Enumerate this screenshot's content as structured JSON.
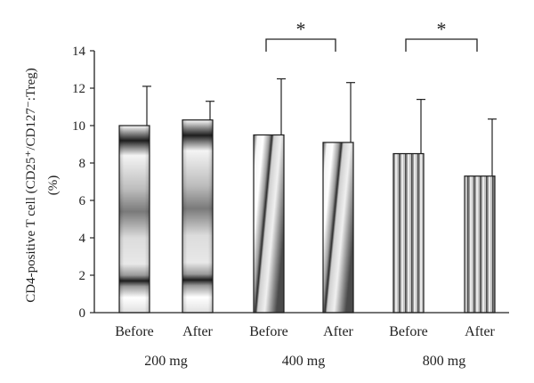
{
  "chart_data": {
    "type": "bar",
    "ylabel_line1": "CD4-positive T cell (CD25⁺/CD127⁻:Treg)",
    "ylabel_line2": "(%)",
    "ylim": [
      0,
      14
    ],
    "yticks": [
      "0",
      "2",
      "4",
      "6",
      "8",
      "10",
      "12",
      "14"
    ],
    "grid": false,
    "groups": [
      {
        "name": "200 mg",
        "pattern": "horizontal-gradient"
      },
      {
        "name": "400 mg",
        "pattern": "diagonal-gradient"
      },
      {
        "name": "800 mg",
        "pattern": "vertical-stripes"
      }
    ],
    "bars": [
      {
        "category": "Before",
        "group": "200 mg",
        "value": 10.0,
        "error": 2.1
      },
      {
        "category": "After",
        "group": "200 mg",
        "value": 10.3,
        "error": 1.0
      },
      {
        "category": "Before",
        "group": "400 mg",
        "value": 9.5,
        "error": 3.0
      },
      {
        "category": "After",
        "group": "400 mg",
        "value": 9.1,
        "error": 3.2
      },
      {
        "category": "Before",
        "group": "800 mg",
        "value": 8.5,
        "error": 2.9
      },
      {
        "category": "After",
        "group": "800 mg",
        "value": 7.3,
        "error": 3.05
      }
    ],
    "significance": [
      {
        "group": "400 mg",
        "label": "*"
      },
      {
        "group": "800 mg",
        "label": "*"
      }
    ]
  }
}
